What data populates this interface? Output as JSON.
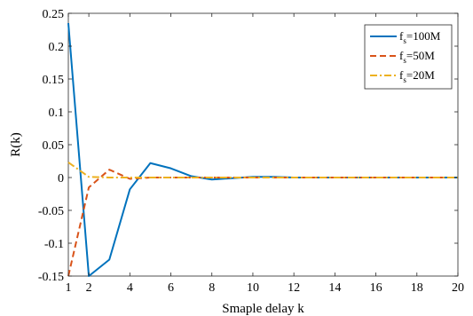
{
  "chart_data": {
    "type": "line",
    "xlabel": "Smaple delay k",
    "ylabel": "R(k)",
    "xlim": [
      1,
      20
    ],
    "ylim": [
      -0.15,
      0.25
    ],
    "xticks": [
      1,
      2,
      4,
      6,
      8,
      10,
      12,
      14,
      16,
      18,
      20
    ],
    "yticks": [
      -0.15,
      -0.1,
      -0.05,
      0,
      0.05,
      0.1,
      0.15,
      0.2,
      0.25
    ],
    "xtick_labels": [
      "1",
      "2",
      "4",
      "6",
      "8",
      "10",
      "12",
      "14",
      "16",
      "18",
      "20"
    ],
    "ytick_labels": [
      "-0.15",
      "-0.1",
      "-0.05",
      "0",
      "0.05",
      "0.1",
      "0.15",
      "0.2",
      "0.25"
    ],
    "grid": false,
    "legend_position": "top-right",
    "x": [
      1,
      2,
      3,
      4,
      5,
      6,
      7,
      8,
      9,
      10,
      11,
      12,
      13,
      14,
      15,
      16,
      17,
      18,
      19,
      20
    ],
    "series": [
      {
        "name": "f_s=100M",
        "label_main": "f",
        "label_sub": "s",
        "label_rest": "=100M",
        "color": "#0072BD",
        "style": "solid",
        "values": [
          0.235,
          -0.15,
          -0.125,
          -0.018,
          0.022,
          0.014,
          0.002,
          -0.003,
          -0.001,
          0.001,
          0.001,
          0.0,
          0.0,
          0.0,
          0.0,
          0.0,
          0.0,
          0.0,
          0.0,
          0.0
        ]
      },
      {
        "name": "f_s=50M",
        "label_main": "f",
        "label_sub": "s",
        "label_rest": "=50M",
        "color": "#D95319",
        "style": "dashed",
        "values": [
          -0.15,
          -0.015,
          0.012,
          -0.002,
          0.0,
          0.0,
          0.0,
          0.0,
          0.0,
          0.0,
          0.0,
          0.0,
          0.0,
          0.0,
          0.0,
          0.0,
          0.0,
          0.0,
          0.0,
          0.0
        ]
      },
      {
        "name": "f_s=20M",
        "label_main": "f",
        "label_sub": "s",
        "label_rest": "=20M",
        "color": "#EDB120",
        "style": "dashdot",
        "values": [
          0.023,
          0.001,
          0.0,
          0.0,
          0.0,
          0.0,
          0.0,
          0.0,
          0.0,
          0.0,
          0.0,
          0.0,
          0.0,
          0.0,
          0.0,
          0.0,
          0.0,
          0.0,
          0.0,
          0.0
        ]
      }
    ]
  }
}
